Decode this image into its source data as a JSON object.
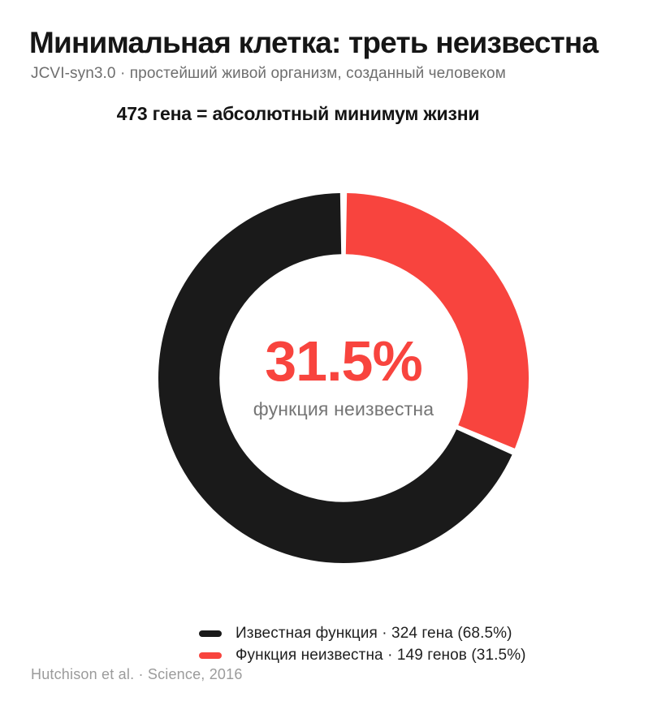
{
  "header": {
    "title": "Минимальная клетка: треть неизвестна",
    "subtitle": "JCVI-syn3.0 · простейший живой организм, созданный человеком"
  },
  "chart_data": {
    "type": "pie",
    "variant": "donut",
    "title": "473 гена = абсолютный минимум жизни",
    "total_genes": 473,
    "slices": [
      {
        "label": "Известная функция",
        "value_genes": 324,
        "percent": 68.5,
        "color": "#1a1a1a",
        "legend": "Известная функция · 324 гена (68.5%)"
      },
      {
        "label": "Функция неизвестна",
        "value_genes": 149,
        "percent": 31.5,
        "color": "#f8443e",
        "legend": "Функция неизвестна · 149 генов (31.5%)"
      }
    ],
    "draw_order": [
      1,
      0
    ],
    "start_angle_deg": 0,
    "direction": "clockwise",
    "donut_hole_ratio": 0.67,
    "segment_gap_deg": 2.1,
    "center_label": {
      "value": "31.5%",
      "caption": "функция неизвестна"
    },
    "legend_position": "bottom",
    "gridlines": false
  },
  "footer": {
    "source": "Hutchison et al. · Science, 2016"
  },
  "colors": {
    "background": "#ffffff",
    "ink": "#161616",
    "accent_red": "#f8443e",
    "muted_gray": "#6e6e6e",
    "faint_gray": "#9b9b9b"
  }
}
